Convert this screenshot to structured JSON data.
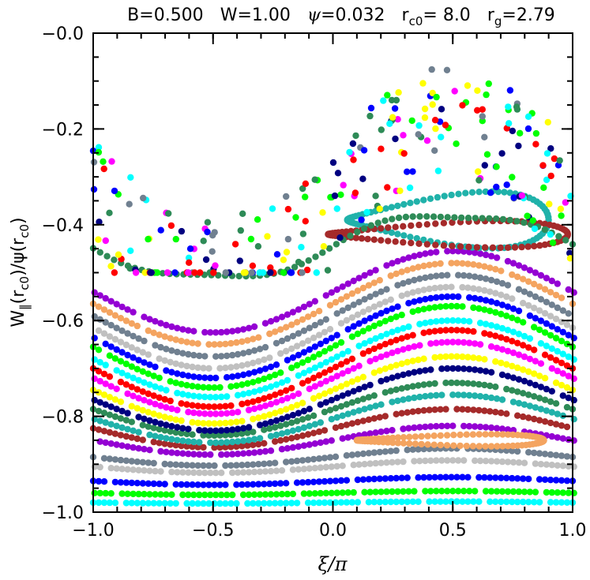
{
  "chart_data": {
    "type": "scatter",
    "title_parts": {
      "B": "B=0.500",
      "W": "W=1.00",
      "psi_prefix": "ψ",
      "psi_value": "=0.032",
      "rc0_base": "r",
      "rc0_sub": "c0",
      "rc0_value": "=  8.0",
      "rg_base": "r",
      "rg_sub": "g",
      "rg_value": "=2.79"
    },
    "xlabel": "ξ/π",
    "ylabel_parts": {
      "W": "W",
      "W_sub": "‖",
      "arg1": "(r",
      "arg1_sub": "c0",
      "mid": ")/ψ(r",
      "arg2_sub": "c0",
      "end": ")"
    },
    "xlim": [
      -1.0,
      1.0
    ],
    "ylim": [
      -1.0,
      0.0
    ],
    "xticks": [
      -1.0,
      -0.5,
      0.0,
      0.5,
      1.0
    ],
    "xtick_labels": [
      "−1.0",
      "−0.5",
      "0.0",
      "0.5",
      "1.0"
    ],
    "yticks": [
      -1.0,
      -0.8,
      -0.6,
      -0.4,
      -0.2,
      0.0
    ],
    "ytick_labels": [
      "−1.0",
      "−0.8",
      "−0.6",
      "−0.4",
      "−0.2",
      "−0.0"
    ],
    "grid": false,
    "legend": "none",
    "series": [
      {
        "color": "#00ffff",
        "level": -0.98,
        "amp": 0.002
      },
      {
        "color": "#00ff00",
        "level": -0.96,
        "amp": 0.004
      },
      {
        "color": "#0000ff",
        "level": -0.935,
        "amp": 0.008
      },
      {
        "color": "#c0c0c0",
        "level": -0.905,
        "amp": 0.013
      },
      {
        "color": "#708090",
        "level": -0.885,
        "amp": 0.018
      },
      {
        "color": "#9400d3",
        "level": -0.85,
        "amp": 0.03
      },
      {
        "color": "#a52a2a",
        "level": -0.825,
        "amp": 0.04
      },
      {
        "color": "#20b2aa",
        "level": -0.805,
        "amp": 0.05
      },
      {
        "color": "#2e8b57",
        "level": -0.785,
        "amp": 0.055
      },
      {
        "color": "#000080",
        "level": -0.765,
        "amp": 0.065
      },
      {
        "color": "#ffff00",
        "level": -0.745,
        "amp": 0.07
      },
      {
        "color": "#ff00ff",
        "level": -0.72,
        "amp": 0.075
      },
      {
        "color": "#ff0000",
        "level": -0.7,
        "amp": 0.08
      },
      {
        "color": "#00ffff",
        "level": -0.68,
        "amp": 0.08
      },
      {
        "color": "#00ff00",
        "level": -0.655,
        "amp": 0.085
      },
      {
        "color": "#0000ff",
        "level": -0.635,
        "amp": 0.085
      },
      {
        "color": "#c0c0c0",
        "level": -0.615,
        "amp": 0.085
      },
      {
        "color": "#708090",
        "level": -0.59,
        "amp": 0.085
      },
      {
        "color": "#f4a460",
        "level": -0.565,
        "amp": 0.085
      },
      {
        "color": "#9400d3",
        "level": -0.54,
        "amp": 0.085
      }
    ],
    "islands": [
      {
        "color": "#f4a460",
        "x0": 0.1,
        "x1": 0.88,
        "y": -0.85,
        "w": 0.018
      },
      {
        "color": "#20b2aa",
        "x0": 0.06,
        "x1": 0.9,
        "y": -0.39,
        "w": 0.085
      },
      {
        "color": "#a52a2a",
        "x0": -0.02,
        "x1": 0.98,
        "y": -0.42,
        "w": 0.04
      }
    ],
    "chaotic_colors": [
      "#ffff00",
      "#00ffff",
      "#0000ff",
      "#000080",
      "#ff00ff",
      "#ff0000",
      "#00ff00",
      "#708090",
      "#2e8b57"
    ]
  }
}
